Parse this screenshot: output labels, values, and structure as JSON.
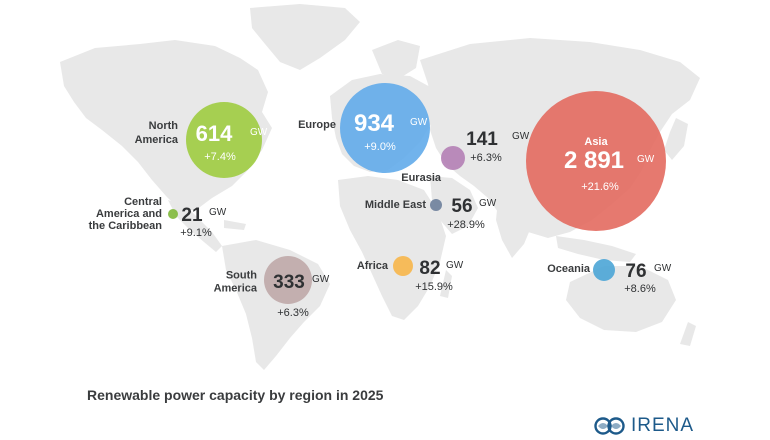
{
  "caption": "Renewable power capacity by region in 2025",
  "logo": {
    "text": "IRENA",
    "icon": "irena-logo-icon",
    "color": "#1d5a8a"
  },
  "unit": "GW",
  "regions": [
    {
      "id": "north-america",
      "name_lines": [
        "North",
        "America"
      ],
      "value": "614",
      "growth": "+7.4%",
      "color": "#9ccb3b"
    },
    {
      "id": "europe",
      "name_lines": [
        "Europe"
      ],
      "value": "934",
      "growth": "+9.0%",
      "color": "#5da9e9"
    },
    {
      "id": "eurasia",
      "name_lines": [
        "Eurasia"
      ],
      "value": "141",
      "growth": "+6.3%",
      "color": "#b47fb5"
    },
    {
      "id": "asia",
      "name_lines": [
        "Asia"
      ],
      "value": "2 891",
      "growth": "+21.6%",
      "color": "#e3675b"
    },
    {
      "id": "central-america",
      "name_lines": [
        "Central",
        "America and",
        "the Caribbean"
      ],
      "value": "21",
      "growth": "+9.1%",
      "color": "#7fb83a"
    },
    {
      "id": "middle-east",
      "name_lines": [
        "Middle East"
      ],
      "value": "56",
      "growth": "+28.9%",
      "color": "#6d7f9b"
    },
    {
      "id": "africa",
      "name_lines": [
        "Africa"
      ],
      "value": "82",
      "growth": "+15.9%",
      "color": "#f7b64a"
    },
    {
      "id": "south-america",
      "name_lines": [
        "South",
        "America"
      ],
      "value": "333",
      "growth": "+6.3%",
      "color": "#bfa8a8"
    },
    {
      "id": "oceania",
      "name_lines": [
        "Oceania"
      ],
      "value": "76",
      "growth": "+8.6%",
      "color": "#4ba5d6"
    }
  ]
}
